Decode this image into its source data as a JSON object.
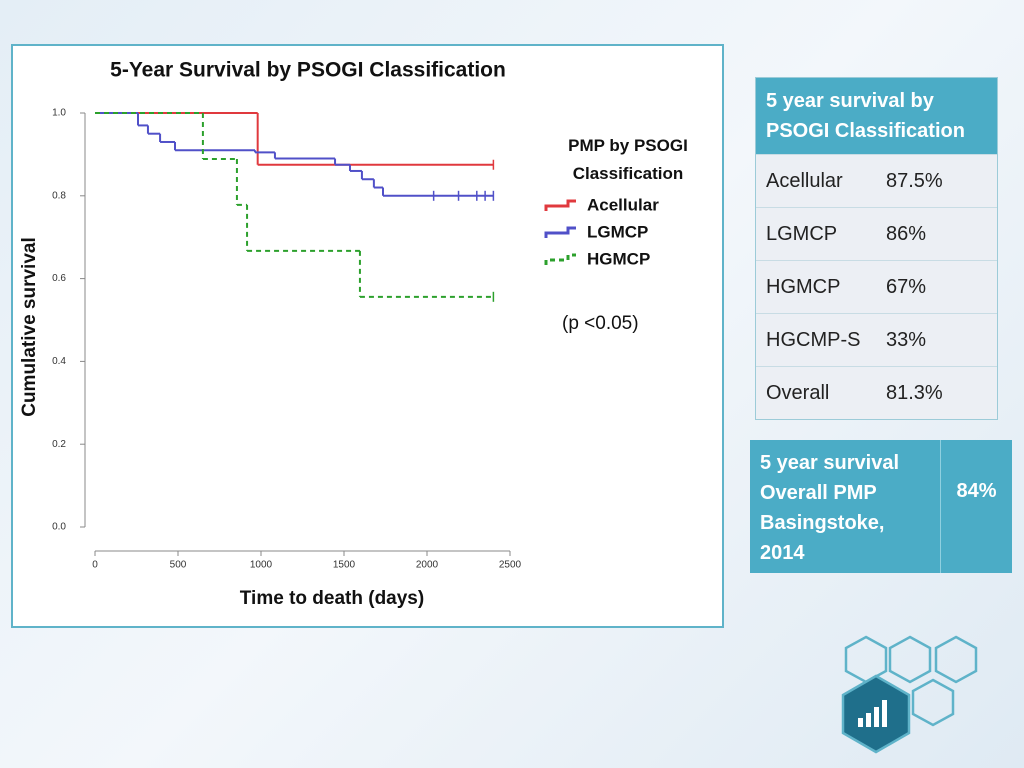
{
  "chart_data": {
    "type": "step",
    "title": "5-Year Survival by PSOGI Classification",
    "x_label": "Time to death (days)",
    "y_label": "Cumulative survival",
    "legend_title": "PMP by PSOGI Classification",
    "annotation": "(p <0.05)",
    "xlim": [
      0,
      2500
    ],
    "ylim": [
      0,
      1
    ],
    "xticks": [
      0,
      500,
      1000,
      1500,
      2000,
      2500
    ],
    "yticks": [
      {
        "value": 0,
        "label": "0.0"
      },
      0.2,
      0.4,
      0.6,
      0.8,
      {
        "value": 1,
        "label": "1.0"
      }
    ],
    "series": [
      {
        "name": "Acellular",
        "color": "#e0393e",
        "dashed": false,
        "x": [
          0,
          980,
          2400
        ],
        "values": [
          1,
          0.875,
          0.875
        ],
        "censored": [
          2400
        ]
      },
      {
        "name": "LGMCP",
        "color": "#5050c8",
        "dashed": false,
        "x": [
          0,
          259,
          319,
          392,
          482,
          964,
          1084,
          1446,
          1536,
          1608,
          1680,
          1735,
          2400
        ],
        "values": [
          1,
          0.97,
          0.95,
          0.93,
          0.91,
          0.905,
          0.89,
          0.875,
          0.86,
          0.84,
          0.82,
          0.8,
          0.8
        ],
        "censored": [
          2040,
          2190,
          2300,
          2350,
          2400
        ]
      },
      {
        "name": "HGMCP",
        "color": "#2ca02c",
        "dashed": true,
        "x": [
          0,
          650,
          855,
          916,
          1596,
          2400
        ],
        "values": [
          1,
          0.889,
          0.778,
          0.667,
          0.556,
          0.556
        ],
        "censored": [
          2400
        ]
      }
    ]
  },
  "table": {
    "header": "5 year survival by PSOGI Classification",
    "rows": [
      [
        "Acellular",
        "87.5%"
      ],
      [
        "LGMCP",
        "86%"
      ],
      [
        "HGMCP",
        "67%"
      ],
      [
        "HGCMP-S",
        "33%"
      ],
      [
        "Overall",
        "81.3%"
      ]
    ]
  },
  "summary": {
    "label": "5 year survival Overall PMP Basingstoke, 2014",
    "value": "84%"
  }
}
